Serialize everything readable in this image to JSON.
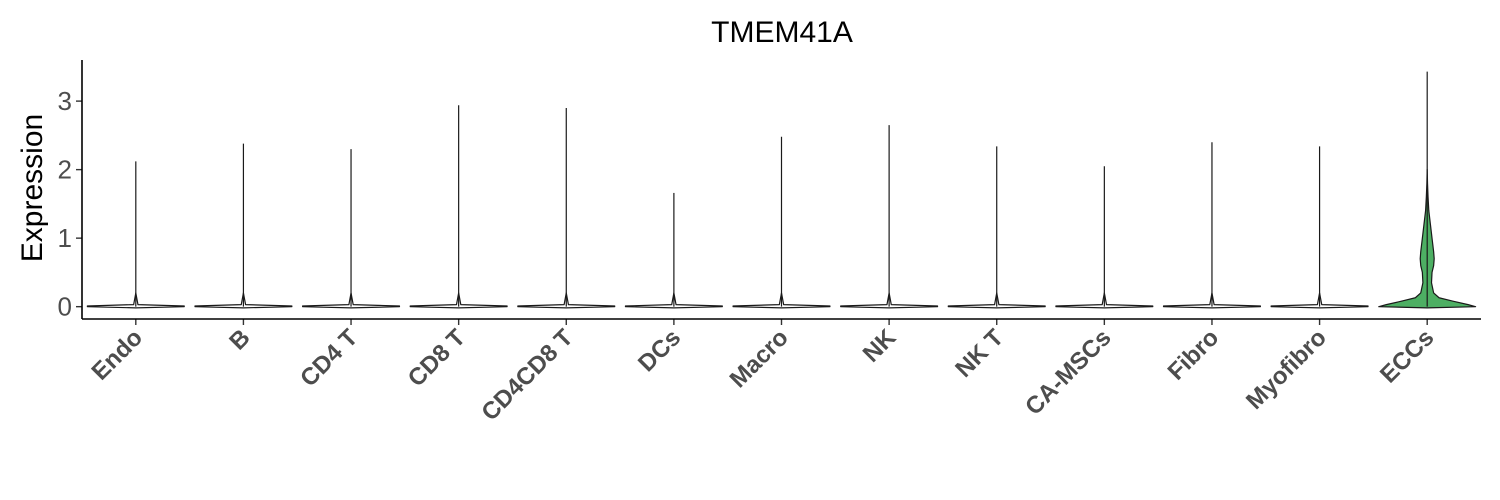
{
  "chart_data": {
    "type": "violin",
    "title": "TMEM41A",
    "xlabel": "",
    "ylabel": "Expression",
    "ylim": [
      -0.18,
      3.6
    ],
    "yticks": [
      0,
      1,
      2,
      3
    ],
    "grid": false,
    "legend": "none",
    "categories": [
      "Endo",
      "B",
      "CD4 T",
      "CD8 T",
      "CD4CD8 T",
      "DCs",
      "Macro",
      "NK",
      "NK T",
      "CA-MSCs",
      "Fibro",
      "Myofibro",
      "ECCs"
    ],
    "max_values": [
      2.12,
      2.38,
      2.3,
      2.94,
      2.9,
      1.66,
      2.48,
      2.65,
      2.34,
      2.05,
      2.4,
      2.34,
      3.43
    ],
    "fill_colors": [
      "#ffffff",
      "#ffffff",
      "#ffffff",
      "#ffffff",
      "#ffffff",
      "#ffffff",
      "#ffffff",
      "#ffffff",
      "#ffffff",
      "#ffffff",
      "#ffffff",
      "#ffffff",
      "#4daf63"
    ],
    "density_profiles": [
      [
        [
          0,
          0.45
        ],
        [
          0.01,
          0.45
        ],
        [
          0.03,
          0.02
        ],
        [
          0.2,
          0.0
        ]
      ],
      [
        [
          0,
          0.45
        ],
        [
          0.01,
          0.45
        ],
        [
          0.03,
          0.02
        ],
        [
          0.2,
          0.0
        ]
      ],
      [
        [
          0,
          0.45
        ],
        [
          0.01,
          0.45
        ],
        [
          0.03,
          0.02
        ],
        [
          0.2,
          0.0
        ]
      ],
      [
        [
          0,
          0.45
        ],
        [
          0.01,
          0.45
        ],
        [
          0.03,
          0.02
        ],
        [
          0.2,
          0.0
        ]
      ],
      [
        [
          0,
          0.45
        ],
        [
          0.01,
          0.45
        ],
        [
          0.03,
          0.02
        ],
        [
          0.2,
          0.0
        ]
      ],
      [
        [
          0,
          0.45
        ],
        [
          0.01,
          0.45
        ],
        [
          0.03,
          0.02
        ],
        [
          0.2,
          0.0
        ]
      ],
      [
        [
          0,
          0.45
        ],
        [
          0.01,
          0.45
        ],
        [
          0.03,
          0.02
        ],
        [
          0.2,
          0.0
        ]
      ],
      [
        [
          0,
          0.45
        ],
        [
          0.01,
          0.45
        ],
        [
          0.03,
          0.02
        ],
        [
          0.2,
          0.0
        ]
      ],
      [
        [
          0,
          0.45
        ],
        [
          0.01,
          0.45
        ],
        [
          0.03,
          0.02
        ],
        [
          0.2,
          0.0
        ]
      ],
      [
        [
          0,
          0.45
        ],
        [
          0.01,
          0.45
        ],
        [
          0.03,
          0.02
        ],
        [
          0.2,
          0.0
        ]
      ],
      [
        [
          0,
          0.45
        ],
        [
          0.01,
          0.45
        ],
        [
          0.03,
          0.02
        ],
        [
          0.2,
          0.0
        ]
      ],
      [
        [
          0,
          0.45
        ],
        [
          0.01,
          0.45
        ],
        [
          0.03,
          0.02
        ],
        [
          0.2,
          0.0
        ]
      ],
      [
        [
          0,
          0.45
        ],
        [
          0.03,
          0.38
        ],
        [
          0.08,
          0.24
        ],
        [
          0.13,
          0.11
        ],
        [
          0.2,
          0.06
        ],
        [
          0.35,
          0.04
        ],
        [
          0.5,
          0.045
        ],
        [
          0.6,
          0.06
        ],
        [
          0.7,
          0.065
        ],
        [
          0.8,
          0.06
        ],
        [
          1.0,
          0.045
        ],
        [
          1.2,
          0.03
        ],
        [
          1.4,
          0.015
        ],
        [
          1.6,
          0.008
        ],
        [
          1.8,
          0.003
        ],
        [
          2.0,
          0.0
        ]
      ]
    ]
  }
}
